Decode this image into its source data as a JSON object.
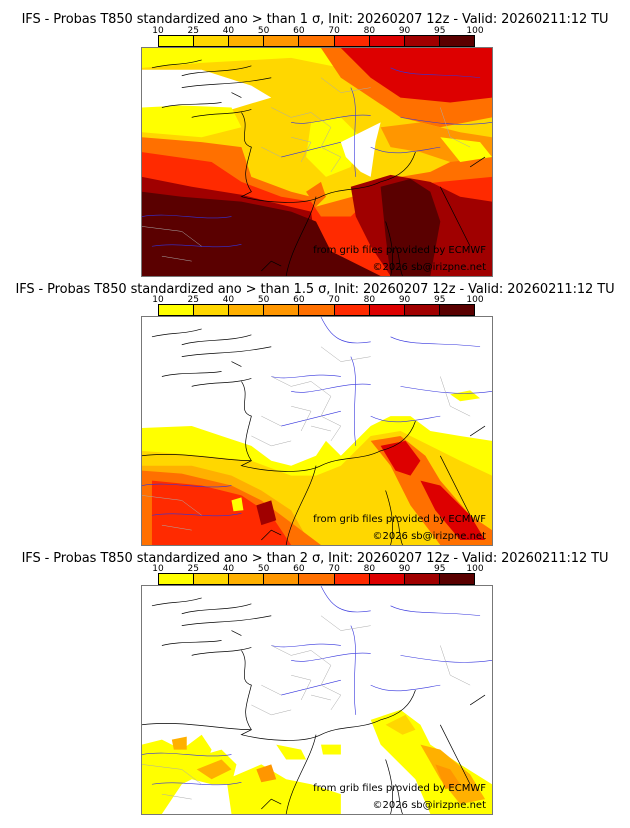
{
  "colorbar": {
    "ticks": [
      "10",
      "25",
      "40",
      "50",
      "60",
      "70",
      "80",
      "90",
      "95",
      "100"
    ],
    "colors": [
      "#ffff00",
      "#ffd700",
      "#ffb000",
      "#ff9600",
      "#ff7000",
      "#ff2a00",
      "#dd0000",
      "#a00000",
      "#5a0000"
    ]
  },
  "panels": [
    {
      "title": "IFS - Probas T850  standardized ano > than 1 σ, Init: 20260207 12z - Valid: 20260211:12 TU",
      "threshold_sigma": 1,
      "credit_source": "from grib files provided by ECMWF",
      "credit_copyright": "©2026 sb@irizpne.net"
    },
    {
      "title": "IFS - Probas T850  standardized ano > than 1.5 σ, Init: 20260207 12z - Valid: 20260211:12 TU",
      "threshold_sigma": 1.5,
      "credit_source": "from grib files provided by ECMWF",
      "credit_copyright": "©2026 sb@irizpne.net"
    },
    {
      "title": "IFS - Probas T850  standardized ano > than 2 σ, Init: 20260207 12z - Valid: 20260211:12 TU",
      "threshold_sigma": 2,
      "credit_source": "from grib files provided by ECMWF",
      "credit_copyright": "©2026 sb@irizpne.net"
    }
  ]
}
